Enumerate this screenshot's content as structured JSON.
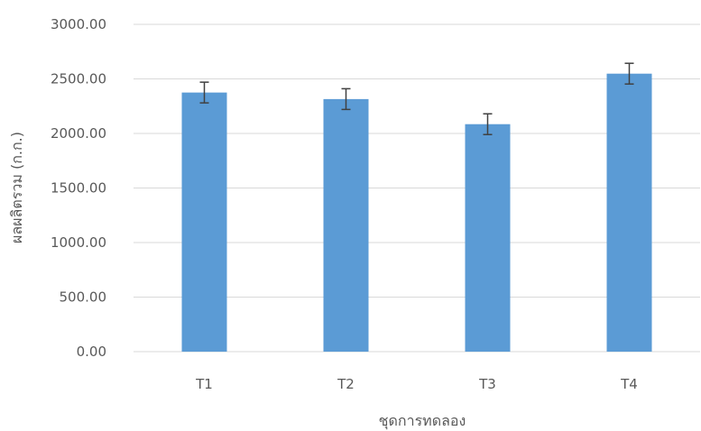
{
  "chart_data": {
    "type": "bar",
    "title": "",
    "xlabel": "ชุดการทดลอง",
    "ylabel": "ผลผลิตรวม (ก.ก.)",
    "categories": [
      "T1",
      "T2",
      "T3",
      "T4"
    ],
    "series": [
      {
        "values": [
          2375,
          2315,
          2085,
          2548
        ],
        "error": [
          95,
          95,
          95,
          95
        ]
      }
    ],
    "ylim": [
      0,
      3000
    ],
    "yticks": [
      0,
      500,
      1000,
      1500,
      2000,
      2500,
      3000
    ],
    "ytick_labels": [
      "0.00",
      "500.00",
      "1000.00",
      "1500.00",
      "2000.00",
      "2500.00",
      "3000.00"
    ],
    "grid": true,
    "legend": "none",
    "colors": {
      "bar": "#5b9bd5",
      "error_bar": "#404040",
      "grid": "#d9d9d9",
      "text": "#595959"
    }
  }
}
